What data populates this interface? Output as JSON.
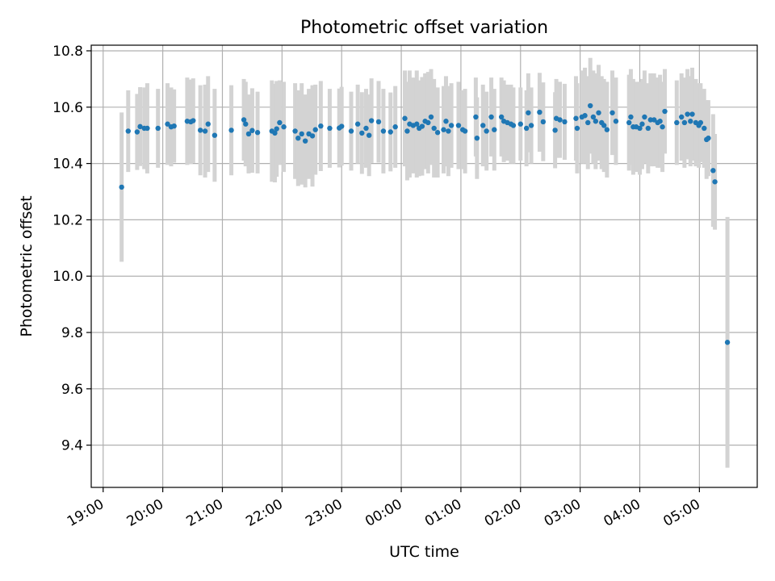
{
  "chart_data": {
    "type": "scatter",
    "title": "Photometric offset variation",
    "xlabel": "UTC time",
    "ylabel": "Photometric offset",
    "x_unit": "UTC hours (clock time, continues past midnight)",
    "xlim": [
      18.8,
      29.97
    ],
    "ylim": [
      9.25,
      10.82
    ],
    "grid": true,
    "xticks": [
      "19:00",
      "20:00",
      "21:00",
      "22:00",
      "23:00",
      "00:00",
      "01:00",
      "02:00",
      "03:00",
      "04:00",
      "05:00"
    ],
    "yticks": [
      "9.4",
      "9.6",
      "9.8",
      "10.0",
      "10.2",
      "10.4",
      "10.6",
      "10.8"
    ],
    "marker_color": "#1f77b4",
    "errorbar_color": "#d3d3d3",
    "points": [
      [
        19.31,
        10.316,
        0.265
      ],
      [
        19.42,
        10.515,
        0.145
      ],
      [
        19.57,
        10.512,
        0.135
      ],
      [
        19.62,
        10.531,
        0.14
      ],
      [
        19.69,
        10.525,
        0.145
      ],
      [
        19.74,
        10.525,
        0.16
      ],
      [
        19.92,
        10.525,
        0.14
      ],
      [
        20.08,
        10.54,
        0.145
      ],
      [
        20.14,
        10.53,
        0.14
      ],
      [
        20.19,
        10.533,
        0.13
      ],
      [
        20.41,
        10.55,
        0.155
      ],
      [
        20.47,
        10.548,
        0.15
      ],
      [
        20.51,
        10.552,
        0.15
      ],
      [
        20.63,
        10.518,
        0.16
      ],
      [
        20.71,
        10.515,
        0.165
      ],
      [
        20.76,
        10.54,
        0.17
      ],
      [
        20.87,
        10.5,
        0.165
      ],
      [
        21.15,
        10.518,
        0.16
      ],
      [
        21.36,
        10.555,
        0.145
      ],
      [
        21.39,
        10.54,
        0.15
      ],
      [
        21.44,
        10.505,
        0.14
      ],
      [
        21.5,
        10.517,
        0.15
      ],
      [
        21.59,
        10.51,
        0.145
      ],
      [
        21.83,
        10.515,
        0.18
      ],
      [
        21.88,
        10.508,
        0.175
      ],
      [
        21.91,
        10.523,
        0.17
      ],
      [
        21.96,
        10.545,
        0.15
      ],
      [
        22.03,
        10.53,
        0.16
      ],
      [
        22.22,
        10.515,
        0.17
      ],
      [
        22.27,
        10.49,
        0.17
      ],
      [
        22.33,
        10.505,
        0.18
      ],
      [
        22.39,
        10.48,
        0.165
      ],
      [
        22.45,
        10.505,
        0.16
      ],
      [
        22.51,
        10.498,
        0.18
      ],
      [
        22.56,
        10.52,
        0.16
      ],
      [
        22.65,
        10.533,
        0.16
      ],
      [
        22.8,
        10.525,
        0.14
      ],
      [
        22.96,
        10.526,
        0.14
      ],
      [
        23.0,
        10.532,
        0.14
      ],
      [
        23.16,
        10.515,
        0.14
      ],
      [
        23.27,
        10.54,
        0.14
      ],
      [
        23.34,
        10.508,
        0.145
      ],
      [
        23.41,
        10.525,
        0.14
      ],
      [
        23.46,
        10.5,
        0.145
      ],
      [
        23.5,
        10.552,
        0.15
      ],
      [
        23.62,
        10.548,
        0.145
      ],
      [
        23.7,
        10.515,
        0.15
      ],
      [
        23.82,
        10.512,
        0.14
      ],
      [
        23.9,
        10.53,
        0.145
      ],
      [
        24.06,
        10.56,
        0.17
      ],
      [
        24.1,
        10.515,
        0.175
      ],
      [
        24.14,
        10.54,
        0.19
      ],
      [
        24.2,
        10.535,
        0.17
      ],
      [
        24.26,
        10.54,
        0.19
      ],
      [
        24.3,
        10.525,
        0.17
      ],
      [
        24.35,
        10.532,
        0.175
      ],
      [
        24.4,
        10.55,
        0.17
      ],
      [
        24.45,
        10.545,
        0.18
      ],
      [
        24.5,
        10.565,
        0.17
      ],
      [
        24.55,
        10.525,
        0.175
      ],
      [
        24.61,
        10.51,
        0.16
      ],
      [
        24.71,
        10.52,
        0.155
      ],
      [
        24.75,
        10.55,
        0.16
      ],
      [
        24.79,
        10.515,
        0.16
      ],
      [
        24.84,
        10.535,
        0.15
      ],
      [
        24.96,
        10.535,
        0.155
      ],
      [
        25.03,
        10.52,
        0.14
      ],
      [
        25.07,
        10.515,
        0.15
      ],
      [
        25.25,
        10.565,
        0.14
      ],
      [
        25.27,
        10.49,
        0.145
      ],
      [
        25.37,
        10.535,
        0.145
      ],
      [
        25.43,
        10.515,
        0.14
      ],
      [
        25.51,
        10.565,
        0.14
      ],
      [
        25.56,
        10.52,
        0.145
      ],
      [
        25.68,
        10.565,
        0.14
      ],
      [
        25.72,
        10.55,
        0.145
      ],
      [
        25.78,
        10.545,
        0.135
      ],
      [
        25.84,
        10.54,
        0.14
      ],
      [
        25.88,
        10.535,
        0.135
      ],
      [
        26.0,
        10.54,
        0.13
      ],
      [
        26.1,
        10.525,
        0.135
      ],
      [
        26.13,
        10.58,
        0.14
      ],
      [
        26.18,
        10.535,
        0.135
      ],
      [
        26.32,
        10.582,
        0.14
      ],
      [
        26.38,
        10.548,
        0.14
      ],
      [
        26.58,
        10.518,
        0.135
      ],
      [
        26.6,
        10.56,
        0.14
      ],
      [
        26.66,
        10.555,
        0.135
      ],
      [
        26.74,
        10.548,
        0.135
      ],
      [
        26.93,
        10.56,
        0.15
      ],
      [
        26.95,
        10.525,
        0.16
      ],
      [
        27.03,
        10.565,
        0.165
      ],
      [
        27.08,
        10.57,
        0.17
      ],
      [
        27.13,
        10.545,
        0.165
      ],
      [
        27.17,
        10.605,
        0.17
      ],
      [
        27.22,
        10.565,
        0.165
      ],
      [
        27.26,
        10.55,
        0.17
      ],
      [
        27.31,
        10.58,
        0.17
      ],
      [
        27.36,
        10.545,
        0.165
      ],
      [
        27.4,
        10.535,
        0.165
      ],
      [
        27.45,
        10.52,
        0.17
      ],
      [
        27.54,
        10.58,
        0.15
      ],
      [
        27.6,
        10.55,
        0.155
      ],
      [
        27.82,
        10.545,
        0.17
      ],
      [
        27.85,
        10.565,
        0.17
      ],
      [
        27.89,
        10.53,
        0.17
      ],
      [
        27.94,
        10.53,
        0.16
      ],
      [
        28.0,
        10.525,
        0.165
      ],
      [
        28.04,
        10.54,
        0.16
      ],
      [
        28.08,
        10.565,
        0.165
      ],
      [
        28.14,
        10.525,
        0.16
      ],
      [
        28.18,
        10.555,
        0.165
      ],
      [
        28.24,
        10.555,
        0.165
      ],
      [
        28.3,
        10.545,
        0.16
      ],
      [
        28.34,
        10.55,
        0.165
      ],
      [
        28.38,
        10.53,
        0.16
      ],
      [
        28.42,
        10.585,
        0.15
      ],
      [
        28.62,
        10.545,
        0.15
      ],
      [
        28.7,
        10.565,
        0.155
      ],
      [
        28.75,
        10.545,
        0.16
      ],
      [
        28.8,
        10.575,
        0.16
      ],
      [
        28.85,
        10.55,
        0.16
      ],
      [
        28.88,
        10.575,
        0.165
      ],
      [
        28.94,
        10.545,
        0.155
      ],
      [
        28.99,
        10.535,
        0.15
      ],
      [
        29.02,
        10.545,
        0.14
      ],
      [
        29.08,
        10.525,
        0.14
      ],
      [
        29.12,
        10.485,
        0.14
      ],
      [
        29.15,
        10.49,
        0.135
      ],
      [
        29.23,
        10.375,
        0.2
      ],
      [
        29.26,
        10.335,
        0.17
      ],
      [
        29.47,
        9.765,
        0.445
      ]
    ]
  }
}
